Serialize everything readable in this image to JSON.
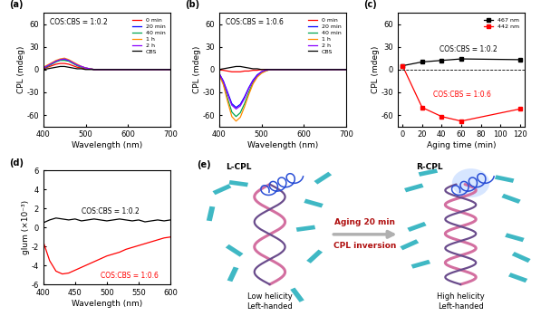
{
  "chart_data": [
    {
      "panel": "(a)",
      "type": "line",
      "x_label": "Wavelength (nm)",
      "y_label": "CPL (mdeg)",
      "annotations": [
        {
          "text": "COS:CBS = 1:0.2",
          "color": "#000000"
        }
      ],
      "x": [
        400,
        410,
        420,
        430,
        440,
        450,
        460,
        470,
        480,
        490,
        500,
        510,
        520,
        530,
        540,
        550,
        560,
        570,
        580,
        590,
        600,
        610,
        620,
        630,
        640,
        650,
        660,
        670,
        680,
        690,
        700
      ],
      "series": [
        {
          "name": "0 min",
          "color": "#ff0000",
          "values": [
            1,
            3,
            5,
            7,
            8,
            8,
            7,
            5,
            3,
            2,
            1,
            1,
            0,
            0,
            0,
            0,
            0,
            0,
            0,
            0,
            0,
            0,
            0,
            0,
            0,
            0,
            0,
            0,
            0,
            0,
            0
          ]
        },
        {
          "name": "20 min",
          "color": "#0000ff",
          "values": [
            2,
            5,
            8,
            11,
            13,
            13,
            12,
            9,
            6,
            4,
            2,
            1,
            0,
            0,
            0,
            0,
            0,
            0,
            0,
            0,
            0,
            0,
            0,
            0,
            0,
            0,
            0,
            0,
            0,
            0,
            0
          ]
        },
        {
          "name": "40 min",
          "color": "#00a651",
          "values": [
            2,
            4,
            7,
            10,
            12,
            12,
            11,
            8,
            5,
            3,
            2,
            1,
            0,
            0,
            0,
            0,
            0,
            0,
            0,
            0,
            0,
            0,
            0,
            0,
            0,
            0,
            0,
            0,
            0,
            0,
            0
          ]
        },
        {
          "name": "1 h",
          "color": "#ff8c00",
          "values": [
            3,
            6,
            9,
            12,
            14,
            15,
            13,
            10,
            7,
            4,
            2,
            1,
            0,
            0,
            0,
            0,
            0,
            0,
            0,
            0,
            0,
            0,
            0,
            0,
            0,
            0,
            0,
            0,
            0,
            0,
            0
          ]
        },
        {
          "name": "2 h",
          "color": "#8b00ff",
          "values": [
            2,
            5,
            8,
            11,
            13,
            14,
            12,
            9,
            6,
            4,
            2,
            1,
            0,
            0,
            0,
            0,
            0,
            0,
            0,
            0,
            0,
            0,
            0,
            0,
            0,
            0,
            0,
            0,
            0,
            0,
            0
          ]
        },
        {
          "name": "CBS",
          "color": "#000000",
          "values": [
            0,
            1,
            2,
            3,
            4,
            4,
            3,
            2,
            1,
            1,
            0,
            0,
            0,
            0,
            0,
            0,
            0,
            0,
            0,
            0,
            0,
            0,
            0,
            0,
            0,
            0,
            0,
            0,
            0,
            0,
            0
          ]
        }
      ],
      "xlim": [
        400,
        700
      ],
      "xticks": [
        400,
        500,
        600,
        700
      ],
      "ylim": [
        -75,
        75
      ],
      "yticks": [
        -60,
        -30,
        0,
        30,
        60
      ],
      "legend": "upper right"
    },
    {
      "panel": "(b)",
      "type": "line",
      "x_label": "Wavelength (nm)",
      "y_label": "CPL (mdeg)",
      "annotations": [
        {
          "text": "COS:CBS = 1:0.6",
          "color": "#000000"
        }
      ],
      "x": [
        400,
        410,
        420,
        430,
        440,
        450,
        460,
        470,
        480,
        490,
        500,
        510,
        520,
        530,
        540,
        550,
        560,
        570,
        580,
        590,
        600,
        610,
        620,
        630,
        640,
        650,
        660,
        670,
        680,
        690,
        700
      ],
      "series": [
        {
          "name": "0 min",
          "color": "#ff0000",
          "values": [
            0,
            -1,
            -2,
            -3,
            -3,
            -3,
            -2,
            -2,
            -1,
            -1,
            0,
            0,
            0,
            0,
            0,
            0,
            0,
            0,
            0,
            0,
            0,
            0,
            0,
            0,
            0,
            0,
            0,
            0,
            0,
            0,
            0
          ]
        },
        {
          "name": "20 min",
          "color": "#0000ff",
          "values": [
            -5,
            -15,
            -30,
            -45,
            -50,
            -46,
            -36,
            -24,
            -14,
            -7,
            -3,
            -1,
            0,
            0,
            0,
            0,
            0,
            0,
            0,
            0,
            0,
            0,
            0,
            0,
            0,
            0,
            0,
            0,
            0,
            0,
            0
          ]
        },
        {
          "name": "40 min",
          "color": "#00a651",
          "values": [
            -6,
            -18,
            -38,
            -56,
            -62,
            -57,
            -45,
            -30,
            -17,
            -9,
            -4,
            -2,
            0,
            0,
            0,
            0,
            0,
            0,
            0,
            0,
            0,
            0,
            0,
            0,
            0,
            0,
            0,
            0,
            0,
            0,
            0
          ]
        },
        {
          "name": "1 h",
          "color": "#ff8c00",
          "values": [
            -7,
            -20,
            -42,
            -62,
            -68,
            -63,
            -49,
            -33,
            -19,
            -10,
            -5,
            -2,
            0,
            0,
            0,
            0,
            0,
            0,
            0,
            0,
            0,
            0,
            0,
            0,
            0,
            0,
            0,
            0,
            0,
            0,
            0
          ]
        },
        {
          "name": "2 h",
          "color": "#8b00ff",
          "values": [
            -5,
            -16,
            -32,
            -47,
            -52,
            -48,
            -38,
            -25,
            -15,
            -8,
            -3,
            -1,
            0,
            0,
            0,
            0,
            0,
            0,
            0,
            0,
            0,
            0,
            0,
            0,
            0,
            0,
            0,
            0,
            0,
            0,
            0
          ]
        },
        {
          "name": "CBS",
          "color": "#000000",
          "values": [
            0,
            1,
            2,
            3,
            4,
            4,
            3,
            2,
            1,
            1,
            0,
            0,
            0,
            0,
            0,
            0,
            0,
            0,
            0,
            0,
            0,
            0,
            0,
            0,
            0,
            0,
            0,
            0,
            0,
            0,
            0
          ]
        }
      ],
      "xlim": [
        400,
        700
      ],
      "xticks": [
        400,
        500,
        600,
        700
      ],
      "ylim": [
        -75,
        75
      ],
      "yticks": [
        -60,
        -30,
        0,
        30,
        60
      ],
      "legend": "upper right"
    },
    {
      "panel": "(c)",
      "type": "line",
      "x_label": "Aging time (min)",
      "y_label": "CPL (mdeg)",
      "annotations": [
        {
          "text": "COS:CBS = 1:0.2",
          "color": "#000000"
        },
        {
          "text": "COS:CBS = 1:0.6",
          "color": "#ff0000"
        }
      ],
      "x": [
        0,
        20,
        40,
        60,
        120
      ],
      "series": [
        {
          "name": "467 nm",
          "color": "#000000",
          "values": [
            5,
            10,
            12,
            14,
            13
          ]
        },
        {
          "name": "442 nm",
          "color": "#ff0000",
          "values": [
            5,
            -50,
            -62,
            -68,
            -52
          ]
        }
      ],
      "marker": "s",
      "hline": 0,
      "xlim": [
        -5,
        125
      ],
      "xticks": [
        0,
        20,
        40,
        60,
        80,
        100,
        120
      ],
      "ylim": [
        -75,
        75
      ],
      "yticks": [
        -60,
        -30,
        0,
        30,
        60
      ],
      "legend": "upper right"
    },
    {
      "panel": "(d)",
      "type": "line",
      "x_label": "Wavelength (nm)",
      "y_label": "glum (×10⁻³)",
      "annotations": [
        {
          "text": "COS:CBS = 1:0.2",
          "color": "#000000"
        },
        {
          "text": "COS:CBS = 1:0.6",
          "color": "#ff0000"
        }
      ],
      "x": [
        400,
        410,
        420,
        430,
        440,
        450,
        460,
        470,
        480,
        490,
        500,
        510,
        520,
        530,
        540,
        550,
        560,
        570,
        580,
        590,
        600
      ],
      "series": [
        {
          "color": "#000000",
          "values": [
            0.5,
            0.8,
            1,
            0.9,
            0.8,
            0.9,
            0.7,
            0.8,
            0.9,
            0.8,
            0.7,
            0.8,
            0.9,
            0.8,
            0.7,
            0.8,
            0.6,
            0.7,
            0.8,
            0.7,
            0.8
          ]
        },
        {
          "color": "#ff0000",
          "values": [
            -1.5,
            -3.5,
            -4.6,
            -4.9,
            -4.8,
            -4.5,
            -4.2,
            -3.9,
            -3.6,
            -3.3,
            -3.0,
            -2.8,
            -2.6,
            -2.3,
            -2.1,
            -1.9,
            -1.7,
            -1.5,
            -1.3,
            -1.1,
            -1.0
          ]
        }
      ],
      "xlim": [
        400,
        600
      ],
      "xticks": [
        400,
        450,
        500,
        550,
        600
      ],
      "ylim": [
        -6,
        6
      ],
      "yticks": [
        -6,
        -4,
        -2,
        0,
        2,
        4,
        6
      ]
    }
  ],
  "diagram": {
    "panel": "(e)",
    "left": {
      "cpl": "L-CPL",
      "label": "Low helicity\nLeft-handed"
    },
    "right": {
      "cpl": "R-CPL",
      "label": "High helicity\nLeft-handed"
    },
    "arrow": {
      "above": "Aging 20 min",
      "below": "CPL inversion"
    }
  }
}
